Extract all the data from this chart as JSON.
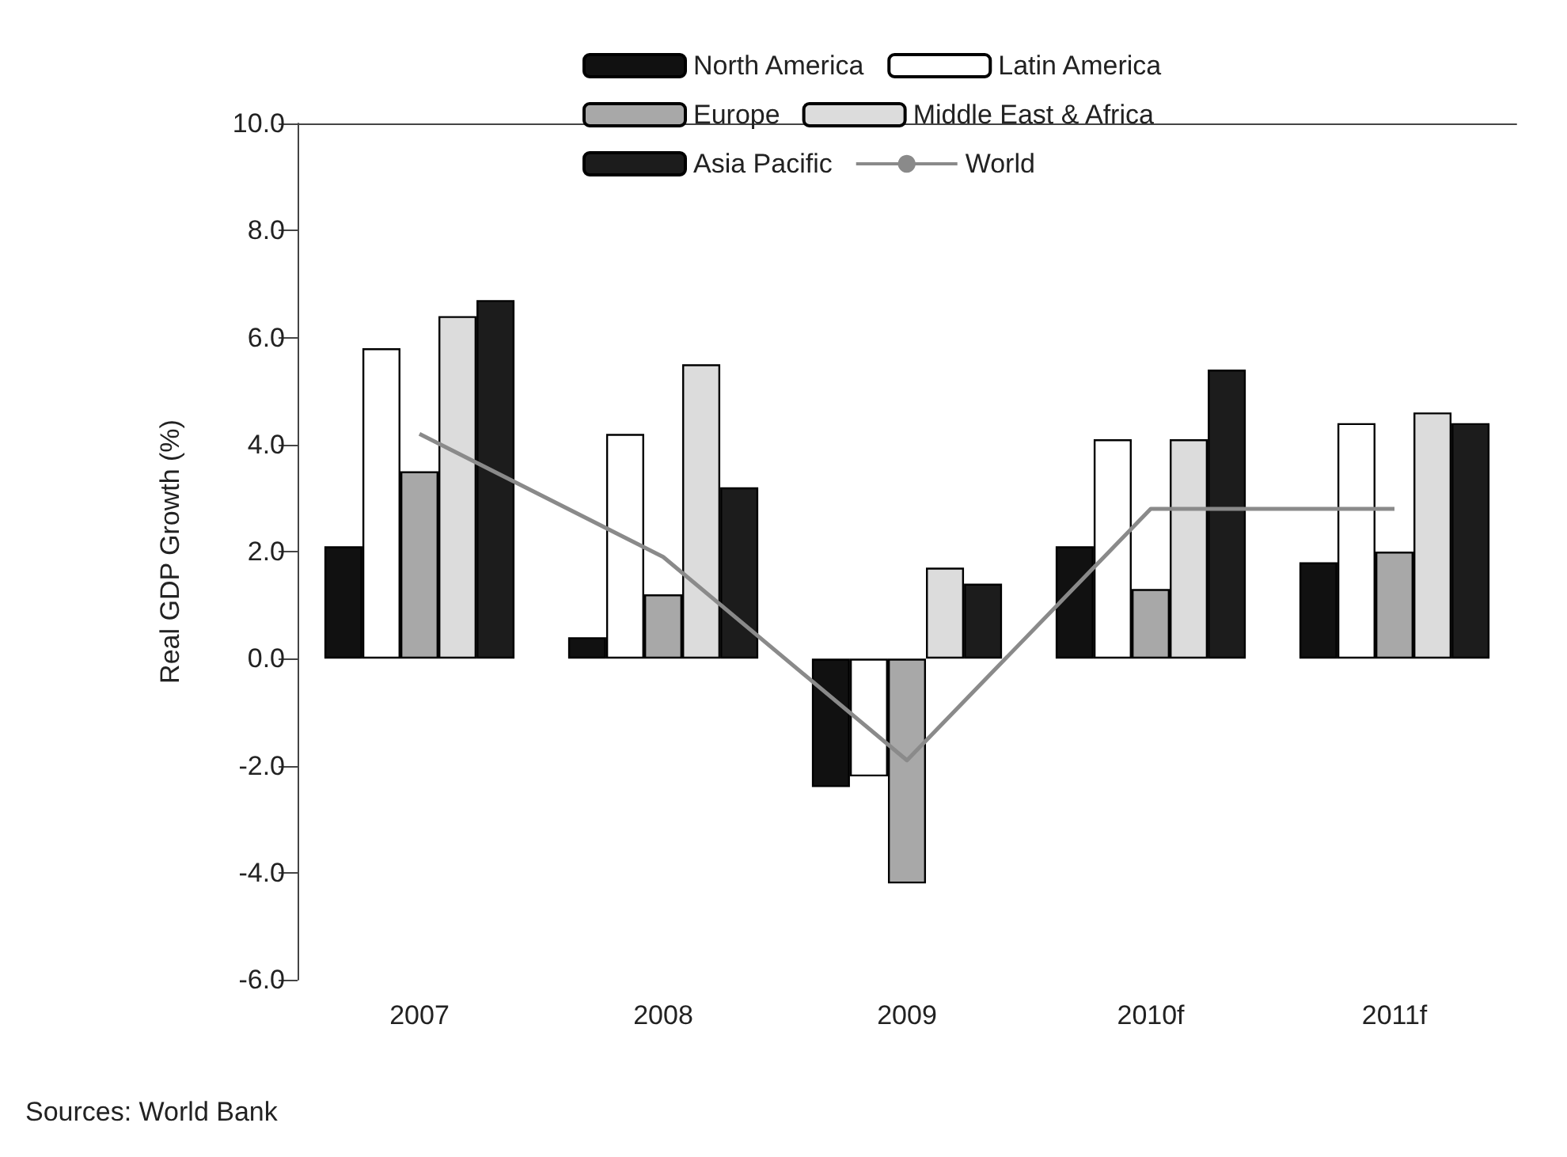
{
  "chart_data": {
    "type": "bar",
    "ylabel": "Real GDP Growth (%)",
    "categories": [
      "2007",
      "2008",
      "2009",
      "2010f",
      "2011f"
    ],
    "series": [
      {
        "name": "North America",
        "color": "#111111",
        "values": [
          2.1,
          0.4,
          -2.4,
          2.1,
          1.8
        ]
      },
      {
        "name": "Latin America",
        "color": "#ffffff",
        "values": [
          5.8,
          4.2,
          -2.2,
          4.1,
          4.4
        ]
      },
      {
        "name": "Europe",
        "color": "#a8a8a8",
        "values": [
          3.5,
          1.2,
          -4.2,
          1.3,
          2.0
        ]
      },
      {
        "name": "Middle East & Africa",
        "color": "#dcdcdc",
        "values": [
          6.4,
          5.5,
          1.7,
          4.1,
          4.6
        ]
      },
      {
        "name": "Asia Pacific",
        "color": "#1c1c1c",
        "values": [
          6.7,
          3.2,
          1.4,
          5.4,
          4.4
        ]
      },
      {
        "name": "World",
        "type": "line",
        "color": "#8a8a8a",
        "values": [
          4.2,
          1.9,
          -1.9,
          2.8,
          2.8
        ]
      }
    ],
    "ylim": [
      -6,
      10
    ],
    "yticks": [
      {
        "value": -6,
        "label": "-6.0"
      },
      {
        "value": -4,
        "label": "-4.0"
      },
      {
        "value": -2,
        "label": "-2.0"
      },
      {
        "value": 0,
        "label": "0.0"
      },
      {
        "value": 2,
        "label": "2.0"
      },
      {
        "value": 4,
        "label": "4.0"
      },
      {
        "value": 6,
        "label": "6.0"
      },
      {
        "value": 8,
        "label": "8.0"
      },
      {
        "value": 10,
        "label": "10.0"
      }
    ],
    "grid": false,
    "legend": "top",
    "marker": "none",
    "line_style": "solid",
    "annotations": [
      "Sources: World Bank"
    ]
  }
}
